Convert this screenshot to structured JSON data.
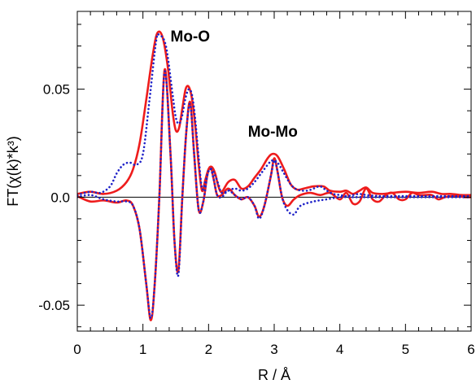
{
  "chart_data": {
    "type": "line",
    "xlabel": "R / Å",
    "ylabel": "FT(χ(k)*k³)",
    "xlim": [
      0,
      6
    ],
    "ylim": [
      -0.062,
      0.086
    ],
    "xticks": [
      0,
      1,
      2,
      3,
      4,
      5,
      6
    ],
    "xtick_labels": [
      "0",
      "1",
      "2",
      "3",
      "4",
      "5",
      "6"
    ],
    "yticks": [
      -0.05,
      0,
      0.05
    ],
    "ytick_labels": [
      "-0.05",
      "0.0",
      "0.05"
    ],
    "grid": false,
    "zero_line": true,
    "annotations": [
      {
        "text": "Mo-O",
        "x": 1.42,
        "y": 0.072
      },
      {
        "text": "Mo-Mo",
        "x": 2.6,
        "y": 0.028
      }
    ],
    "series": [
      {
        "kind": "magnitude",
        "color": "#ee1c1c",
        "style": "solid",
        "x": [
          0,
          0.2,
          0.4,
          0.6,
          0.75,
          0.85,
          0.95,
          1.05,
          1.15,
          1.22,
          1.3,
          1.38,
          1.45,
          1.5,
          1.55,
          1.6,
          1.65,
          1.7,
          1.75,
          1.8,
          1.85,
          1.9,
          1.95,
          2.0,
          2.05,
          2.1,
          2.15,
          2.2,
          2.3,
          2.4,
          2.5,
          2.6,
          2.7,
          2.8,
          2.9,
          2.97,
          3.05,
          3.15,
          3.25,
          3.35,
          3.45,
          3.6,
          3.75,
          3.85,
          4.0,
          4.1,
          4.2,
          4.3,
          4.4,
          4.5,
          4.65,
          4.8,
          5.0,
          5.2,
          5.4,
          5.55,
          5.7,
          5.85,
          6.0
        ],
        "y": [
          0.0015,
          0.0025,
          0.0015,
          0.003,
          0.007,
          0.013,
          0.025,
          0.045,
          0.066,
          0.076,
          0.074,
          0.06,
          0.04,
          0.031,
          0.032,
          0.041,
          0.05,
          0.051,
          0.045,
          0.032,
          0.015,
          0.003,
          0.008,
          0.013,
          0.014,
          0.011,
          0.005,
          0.0025,
          0.007,
          0.008,
          0.004,
          0.005,
          0.009,
          0.013,
          0.018,
          0.02,
          0.019,
          0.013,
          0.006,
          0.0035,
          0.004,
          0.005,
          0.005,
          0.003,
          0.0025,
          0.003,
          0.0015,
          0.003,
          0.0045,
          0.002,
          0.0015,
          0.002,
          0.0025,
          0.002,
          0.0025,
          0.0015,
          0.0015,
          0.001,
          0.001
        ]
      },
      {
        "kind": "magnitude",
        "color": "#1f22c8",
        "style": "dotted",
        "x": [
          0,
          0.2,
          0.35,
          0.5,
          0.6,
          0.7,
          0.8,
          0.9,
          1.0,
          1.1,
          1.2,
          1.25,
          1.35,
          1.45,
          1.5,
          1.55,
          1.6,
          1.65,
          1.7,
          1.75,
          1.8,
          1.85,
          1.9,
          1.95,
          2.0,
          2.05,
          2.1,
          2.15,
          2.2,
          2.3,
          2.4,
          2.5,
          2.6,
          2.7,
          2.8,
          2.9,
          2.97,
          3.05,
          3.15,
          3.25,
          3.35,
          3.5,
          3.6,
          3.7,
          3.8,
          3.9,
          4.0,
          4.1,
          4.2,
          4.3,
          4.4,
          4.6,
          4.8,
          5.0,
          5.3,
          5.6,
          5.8,
          6.0
        ],
        "y": [
          0.001,
          0.0025,
          0.002,
          0.005,
          0.011,
          0.015,
          0.016,
          0.015,
          0.02,
          0.045,
          0.072,
          0.075,
          0.07,
          0.048,
          0.037,
          0.034,
          0.038,
          0.046,
          0.05,
          0.047,
          0.035,
          0.018,
          0.004,
          0.007,
          0.012,
          0.013,
          0.01,
          0.006,
          0.002,
          0.003,
          0.004,
          0.003,
          0.004,
          0.007,
          0.011,
          0.015,
          0.017,
          0.016,
          0.011,
          0.006,
          0.0035,
          0.003,
          0.004,
          0.005,
          0.003,
          0.0015,
          0.001,
          0.0005,
          0.001,
          0.0015,
          0.001,
          0.0005,
          0.0005,
          0.0005,
          0.0005,
          0.0005,
          0.0005,
          0.0005
        ]
      },
      {
        "kind": "imaginary",
        "color": "#ee1c1c",
        "style": "solid",
        "x": [
          0,
          0.2,
          0.4,
          0.6,
          0.75,
          0.85,
          0.95,
          1.05,
          1.12,
          1.18,
          1.25,
          1.33,
          1.42,
          1.48,
          1.54,
          1.6,
          1.66,
          1.72,
          1.78,
          1.85,
          1.92,
          1.98,
          2.03,
          2.08,
          2.13,
          2.2,
          2.3,
          2.4,
          2.5,
          2.6,
          2.7,
          2.77,
          2.85,
          2.95,
          3.0,
          3.05,
          3.12,
          3.2,
          3.3,
          3.4,
          3.55,
          3.7,
          3.85,
          4.0,
          4.1,
          4.2,
          4.3,
          4.4,
          4.5,
          4.6,
          4.7,
          4.8,
          4.9,
          5.0,
          5.1,
          5.2,
          5.3,
          5.4,
          5.5,
          5.6,
          5.7,
          5.8,
          5.9,
          6.0
        ],
        "y": [
          0.0005,
          -0.002,
          -0.0015,
          -0.0025,
          -0.0015,
          -0.004,
          -0.015,
          -0.04,
          -0.057,
          -0.04,
          0.0,
          0.059,
          0.02,
          -0.02,
          -0.034,
          0.0,
          0.03,
          0.044,
          0.02,
          -0.006,
          -0.002,
          0.01,
          0.014,
          0.008,
          0.001,
          0.001,
          0.004,
          0.001,
          -0.001,
          0.0,
          -0.004,
          -0.009,
          -0.004,
          0.01,
          0.018,
          0.012,
          0.0,
          -0.004,
          -0.001,
          0.001,
          0.002,
          0.001,
          0.002,
          -0.001,
          0.002,
          -0.003,
          -0.002,
          0.004,
          -0.001,
          -0.002,
          0.001,
          0.002,
          -0.001,
          -0.001,
          0.002,
          0.001,
          0.001,
          0.001,
          -0.001,
          0.0,
          0.0005,
          0.0005,
          0.0,
          0.0
        ]
      },
      {
        "kind": "imaginary",
        "color": "#1f22c8",
        "style": "dotted",
        "x": [
          0,
          0.2,
          0.4,
          0.6,
          0.75,
          0.85,
          0.95,
          1.05,
          1.12,
          1.18,
          1.25,
          1.33,
          1.42,
          1.48,
          1.54,
          1.6,
          1.66,
          1.72,
          1.78,
          1.85,
          1.92,
          1.98,
          2.03,
          2.08,
          2.13,
          2.2,
          2.3,
          2.4,
          2.5,
          2.6,
          2.7,
          2.77,
          2.85,
          2.95,
          3.0,
          3.05,
          3.12,
          3.2,
          3.3,
          3.4,
          3.6,
          3.8,
          4.0,
          4.2,
          4.4,
          4.6,
          4.8,
          5.0,
          5.3,
          5.6,
          6.0
        ],
        "y": [
          0.0,
          0.001,
          -0.001,
          -0.002,
          -0.002,
          -0.004,
          -0.015,
          -0.04,
          -0.056,
          -0.04,
          0.0,
          0.058,
          0.02,
          -0.02,
          -0.036,
          0.0,
          0.03,
          0.043,
          0.02,
          -0.006,
          -0.002,
          0.01,
          0.013,
          0.008,
          0.001,
          0.0,
          0.003,
          0.001,
          -0.001,
          0.0,
          -0.004,
          -0.01,
          -0.004,
          0.01,
          0.017,
          0.012,
          0.0,
          -0.006,
          -0.008,
          -0.004,
          -0.002,
          -0.001,
          0.0,
          0.0,
          0.0,
          0.0,
          0.0,
          0.0,
          0.0,
          0.0,
          0.0
        ]
      }
    ]
  }
}
